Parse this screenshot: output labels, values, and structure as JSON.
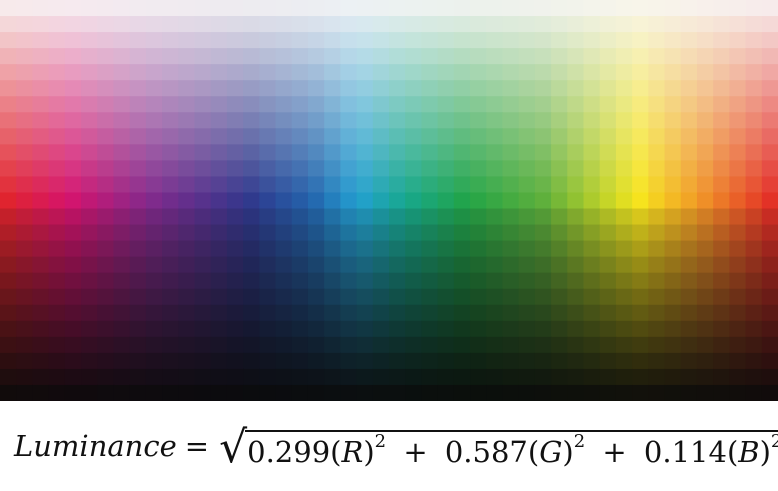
{
  "grid": {
    "cols": 48,
    "rows": 25
  },
  "formula": {
    "lhs": "Luminance",
    "eq": "=",
    "terms": [
      {
        "coef": "0.299",
        "channel": "R",
        "exp": "2"
      },
      {
        "coef": "0.587",
        "channel": "G",
        "exp": "2"
      },
      {
        "coef": "0.114",
        "channel": "B",
        "exp": "2"
      }
    ],
    "plus": "+"
  }
}
